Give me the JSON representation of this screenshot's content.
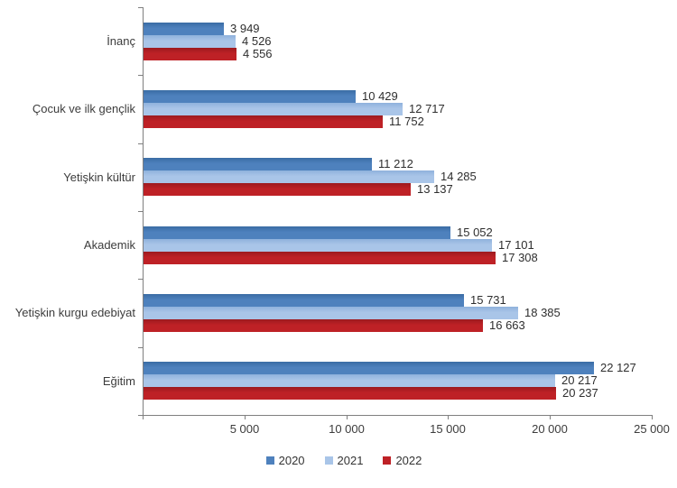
{
  "chart_data": {
    "type": "bar",
    "orientation": "horizontal",
    "title": "",
    "categories": [
      "İnanç",
      "Çocuk ve ilk gençlik",
      "Yetişkin kültür",
      "Akademik",
      "Yetişkin kurgu edebiyat",
      "Eğitim"
    ],
    "series": [
      {
        "name": "2020",
        "color": "#4E81BD",
        "edge_color": "#3A6CA4",
        "values": [
          3949,
          10429,
          11212,
          15052,
          15731,
          22127
        ],
        "labels": [
          "3 949",
          "10 429",
          "11 212",
          "15 052",
          "15 731",
          "22 127"
        ]
      },
      {
        "name": "2021",
        "color": "#A9C5E8",
        "edge_color": "#8FB2DC",
        "values": [
          4526,
          12717,
          14285,
          17101,
          18385,
          20217
        ],
        "labels": [
          "4 526",
          "12 717",
          "14 285",
          "17 101",
          "18 385",
          "20 217"
        ]
      },
      {
        "name": "2022",
        "color": "#BE2126",
        "edge_color": "#9C1A1F",
        "values": [
          4556,
          11752,
          13137,
          17308,
          16663,
          20237
        ],
        "labels": [
          "4 556",
          "11 752",
          "13 137",
          "17 308",
          "16 663",
          "20 237"
        ]
      }
    ],
    "xlim": [
      0,
      25000
    ],
    "x_ticks": [
      0,
      5000,
      10000,
      15000,
      20000,
      25000
    ],
    "x_tick_labels": [
      "",
      "5 000",
      "10 000",
      "15 000",
      "20 000",
      "25 000"
    ],
    "value_labels": true,
    "grid": false,
    "legend_position": "bottom",
    "axis_color": "#7f7f7f",
    "text_color": "#3c3c3c"
  }
}
